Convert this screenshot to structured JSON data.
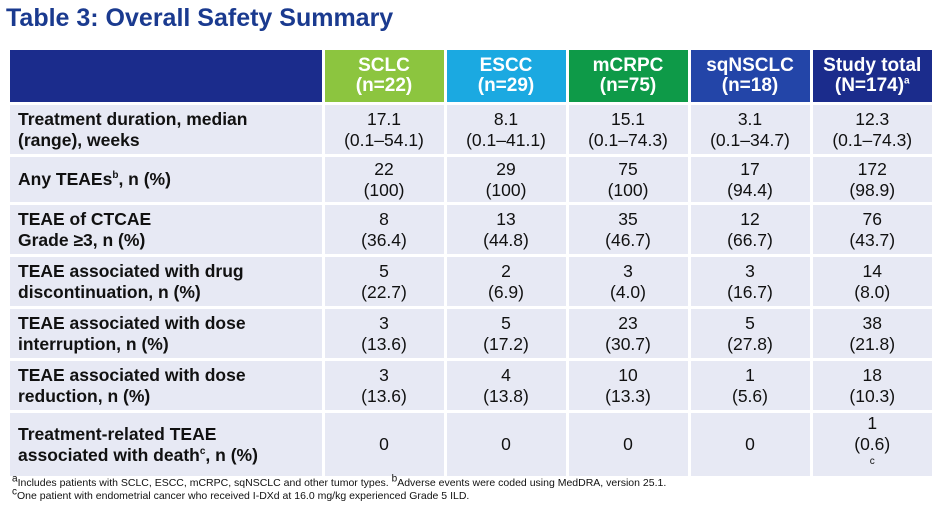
{
  "title": "Table 3: Overall Safety Summary",
  "colors": {
    "title": "#1a3a8f",
    "label_header": "#1b2c8c",
    "sclc": "#8cc53f",
    "escc": "#1ba9e1",
    "mcrpc": "#0e9a48",
    "sqnsclc": "#2345a8",
    "total": "#1b2c8c",
    "row_bg": "#e7e9f4"
  },
  "columns": [
    {
      "name": "SCLC",
      "n": "(n=22)",
      "sup": ""
    },
    {
      "name": "ESCC",
      "n": "(n=29)",
      "sup": ""
    },
    {
      "name": "mCRPC",
      "n": "(n=75)",
      "sup": ""
    },
    {
      "name": "sqNSCLC",
      "n": "(n=18)",
      "sup": ""
    },
    {
      "name": "Study total",
      "n": "(N=174)",
      "sup": "a"
    }
  ],
  "rows": [
    {
      "label1": "Treatment duration, median",
      "label1_sup": "",
      "label1_tail": "",
      "label2": "(range), weeks",
      "label2_sup": "",
      "label2_tail": "",
      "cells": [
        {
          "v": "17.1",
          "r": "(0.1–54.1)",
          "sup": ""
        },
        {
          "v": "8.1",
          "r": "(0.1–41.1)",
          "sup": ""
        },
        {
          "v": "15.1",
          "r": "(0.1–74.3)",
          "sup": ""
        },
        {
          "v": "3.1",
          "r": "(0.1–34.7)",
          "sup": ""
        },
        {
          "v": "12.3",
          "r": "(0.1–74.3)",
          "sup": ""
        }
      ]
    },
    {
      "label1": "Any TEAEs",
      "label1_sup": "b",
      "label1_tail": ", n (%)",
      "label2": "",
      "label2_sup": "",
      "label2_tail": "",
      "cells": [
        {
          "v": "22",
          "r": "(100)",
          "sup": ""
        },
        {
          "v": "29",
          "r": "(100)",
          "sup": ""
        },
        {
          "v": "75",
          "r": "(100)",
          "sup": ""
        },
        {
          "v": "17",
          "r": "(94.4)",
          "sup": ""
        },
        {
          "v": "172",
          "r": "(98.9)",
          "sup": ""
        }
      ]
    },
    {
      "label1": "TEAE of CTCAE",
      "label1_sup": "",
      "label1_tail": "",
      "label2": "Grade ≥3, n (%)",
      "label2_sup": "",
      "label2_tail": "",
      "cells": [
        {
          "v": "8",
          "r": "(36.4)",
          "sup": ""
        },
        {
          "v": "13",
          "r": "(44.8)",
          "sup": ""
        },
        {
          "v": "35",
          "r": "(46.7)",
          "sup": ""
        },
        {
          "v": "12",
          "r": "(66.7)",
          "sup": ""
        },
        {
          "v": "76",
          "r": "(43.7)",
          "sup": ""
        }
      ]
    },
    {
      "label1": "TEAE associated with drug",
      "label1_sup": "",
      "label1_tail": "",
      "label2": "discontinuation, n (%)",
      "label2_sup": "",
      "label2_tail": "",
      "cells": [
        {
          "v": "5",
          "r": "(22.7)",
          "sup": ""
        },
        {
          "v": "2",
          "r": "(6.9)",
          "sup": ""
        },
        {
          "v": "3",
          "r": "(4.0)",
          "sup": ""
        },
        {
          "v": "3",
          "r": "(16.7)",
          "sup": ""
        },
        {
          "v": "14",
          "r": "(8.0)",
          "sup": ""
        }
      ]
    },
    {
      "label1": "TEAE associated with dose",
      "label1_sup": "",
      "label1_tail": "",
      "label2": "interruption, n (%)",
      "label2_sup": "",
      "label2_tail": "",
      "cells": [
        {
          "v": "3",
          "r": "(13.6)",
          "sup": ""
        },
        {
          "v": "5",
          "r": "(17.2)",
          "sup": ""
        },
        {
          "v": "23",
          "r": "(30.7)",
          "sup": ""
        },
        {
          "v": "5",
          "r": "(27.8)",
          "sup": ""
        },
        {
          "v": "38",
          "r": "(21.8)",
          "sup": ""
        }
      ]
    },
    {
      "label1": "TEAE associated with dose",
      "label1_sup": "",
      "label1_tail": "",
      "label2": "reduction, n (%)",
      "label2_sup": "",
      "label2_tail": "",
      "cells": [
        {
          "v": "3",
          "r": "(13.6)",
          "sup": ""
        },
        {
          "v": "4",
          "r": "(13.8)",
          "sup": ""
        },
        {
          "v": "10",
          "r": "(13.3)",
          "sup": ""
        },
        {
          "v": "1",
          "r": "(5.6)",
          "sup": ""
        },
        {
          "v": "18",
          "r": "(10.3)",
          "sup": ""
        }
      ]
    },
    {
      "label1": "Treatment-related TEAE",
      "label1_sup": "",
      "label1_tail": "",
      "label2": "associated with death",
      "label2_sup": "c",
      "label2_tail": ", n (%)",
      "cells": [
        {
          "v": "0",
          "r": "",
          "sup": ""
        },
        {
          "v": "0",
          "r": "",
          "sup": ""
        },
        {
          "v": "0",
          "r": "",
          "sup": ""
        },
        {
          "v": "0",
          "r": "",
          "sup": ""
        },
        {
          "v": "1",
          "r": "(0.6)",
          "sup": "c"
        }
      ]
    }
  ],
  "footnotes": {
    "a_mark": "a",
    "a_text": "Includes patients with SCLC, ESCC, mCRPC, sqNSCLC and other tumor types.",
    "b_mark": "b",
    "b_text": "Adverse events were coded using MedDRA, version 25.1.",
    "c_mark": "c",
    "c_text": "One patient with endometrial cancer who received I-DXd at 16.0 mg/kg experienced Grade 5 ILD."
  }
}
